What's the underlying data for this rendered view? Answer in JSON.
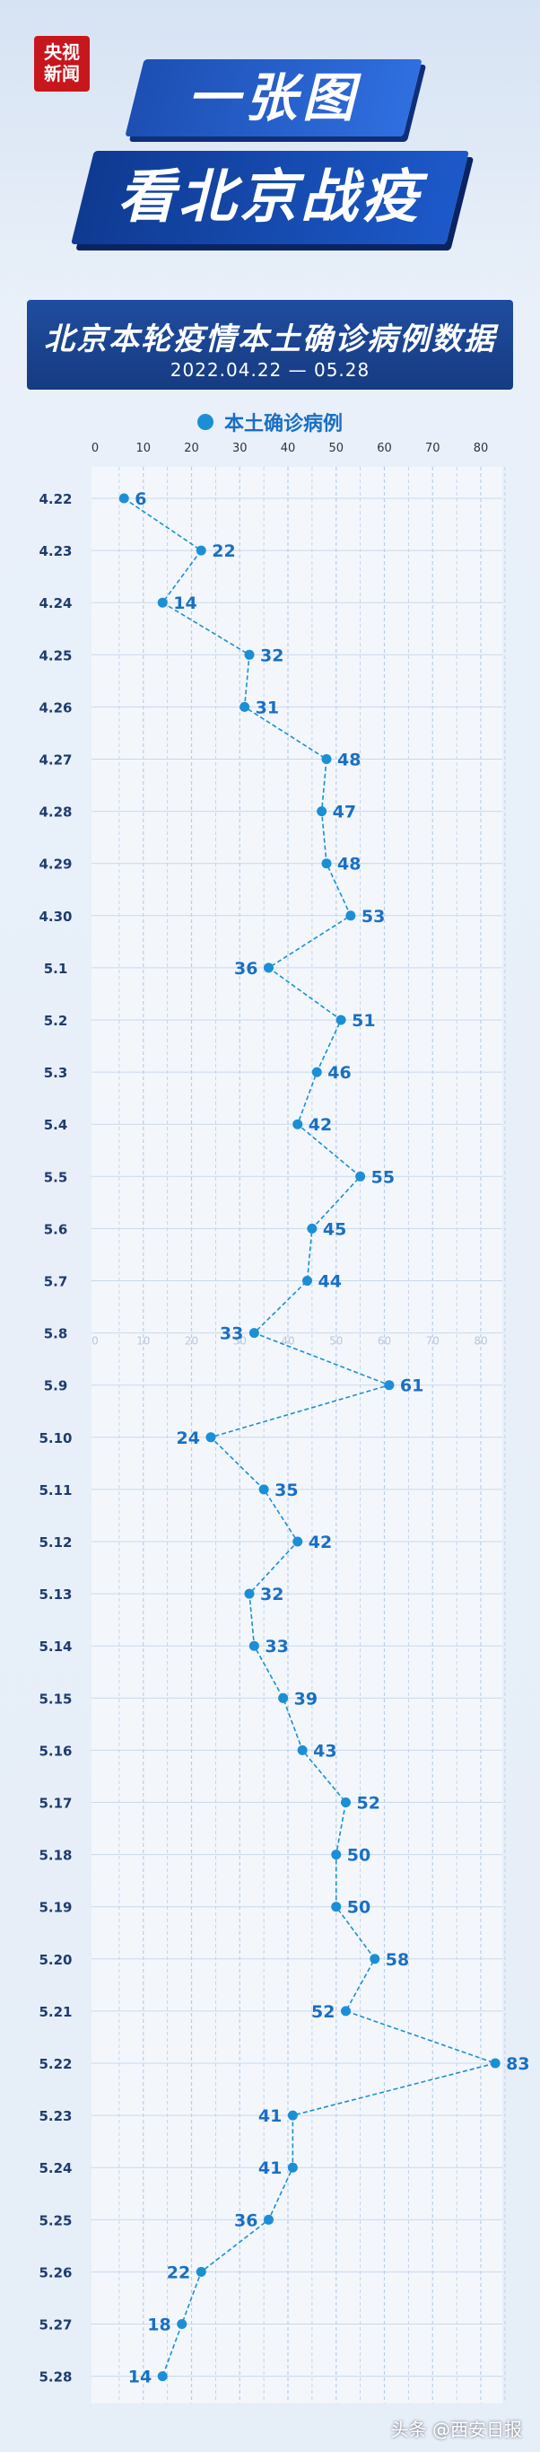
{
  "header": {
    "logo_line1": "央视",
    "logo_line2": "新闻",
    "banner1": "一张图",
    "banner2": "看北京战疫"
  },
  "title": {
    "main": "北京本轮疫情本土确诊病例数据",
    "date_range": "2022.04.22 — 05.28"
  },
  "legend": {
    "label": "本土确诊病例"
  },
  "footer": {
    "credit": "头条 @西安日报"
  },
  "colors": {
    "series": "#1b8fd6",
    "label": "#1a6fc4",
    "title_bg": "#1a4490",
    "grid": "#b9cde6"
  },
  "chart_data": {
    "type": "line",
    "orientation": "horizontal",
    "title": "北京本轮疫情本土确诊病例数据",
    "subtitle": "2022.04.22 — 05.28",
    "xlabel": "",
    "ylabel": "",
    "xlim": [
      0,
      80
    ],
    "x_ticks": [
      0,
      10,
      20,
      30,
      40,
      50,
      60,
      70,
      80
    ],
    "x_ticks_repeated_at_category": "5.8",
    "grid": true,
    "legend_position": "top-center",
    "categories": [
      "4.22",
      "4.23",
      "4.24",
      "4.25",
      "4.26",
      "4.27",
      "4.28",
      "4.29",
      "4.30",
      "5.1",
      "5.2",
      "5.3",
      "5.4",
      "5.5",
      "5.6",
      "5.7",
      "5.8",
      "5.9",
      "5.10",
      "5.11",
      "5.12",
      "5.13",
      "5.14",
      "5.15",
      "5.16",
      "5.17",
      "5.18",
      "5.19",
      "5.20",
      "5.21",
      "5.22",
      "5.23",
      "5.24",
      "5.25",
      "5.26",
      "5.27",
      "5.28"
    ],
    "series": [
      {
        "name": "本土确诊病例",
        "values": [
          6,
          22,
          14,
          32,
          31,
          48,
          47,
          48,
          53,
          36,
          51,
          46,
          42,
          55,
          45,
          44,
          33,
          61,
          24,
          35,
          42,
          32,
          33,
          39,
          43,
          52,
          50,
          50,
          58,
          52,
          83,
          41,
          41,
          36,
          22,
          18,
          14
        ],
        "label_side": [
          "right",
          "right",
          "right",
          "right",
          "right",
          "right",
          "right",
          "right",
          "right",
          "left",
          "right",
          "right",
          "right",
          "right",
          "right",
          "right",
          "left",
          "right",
          "left",
          "right",
          "right",
          "right",
          "right",
          "right",
          "right",
          "right",
          "right",
          "right",
          "right",
          "left",
          "right",
          "left",
          "left",
          "left",
          "left",
          "left",
          "left"
        ]
      }
    ]
  }
}
